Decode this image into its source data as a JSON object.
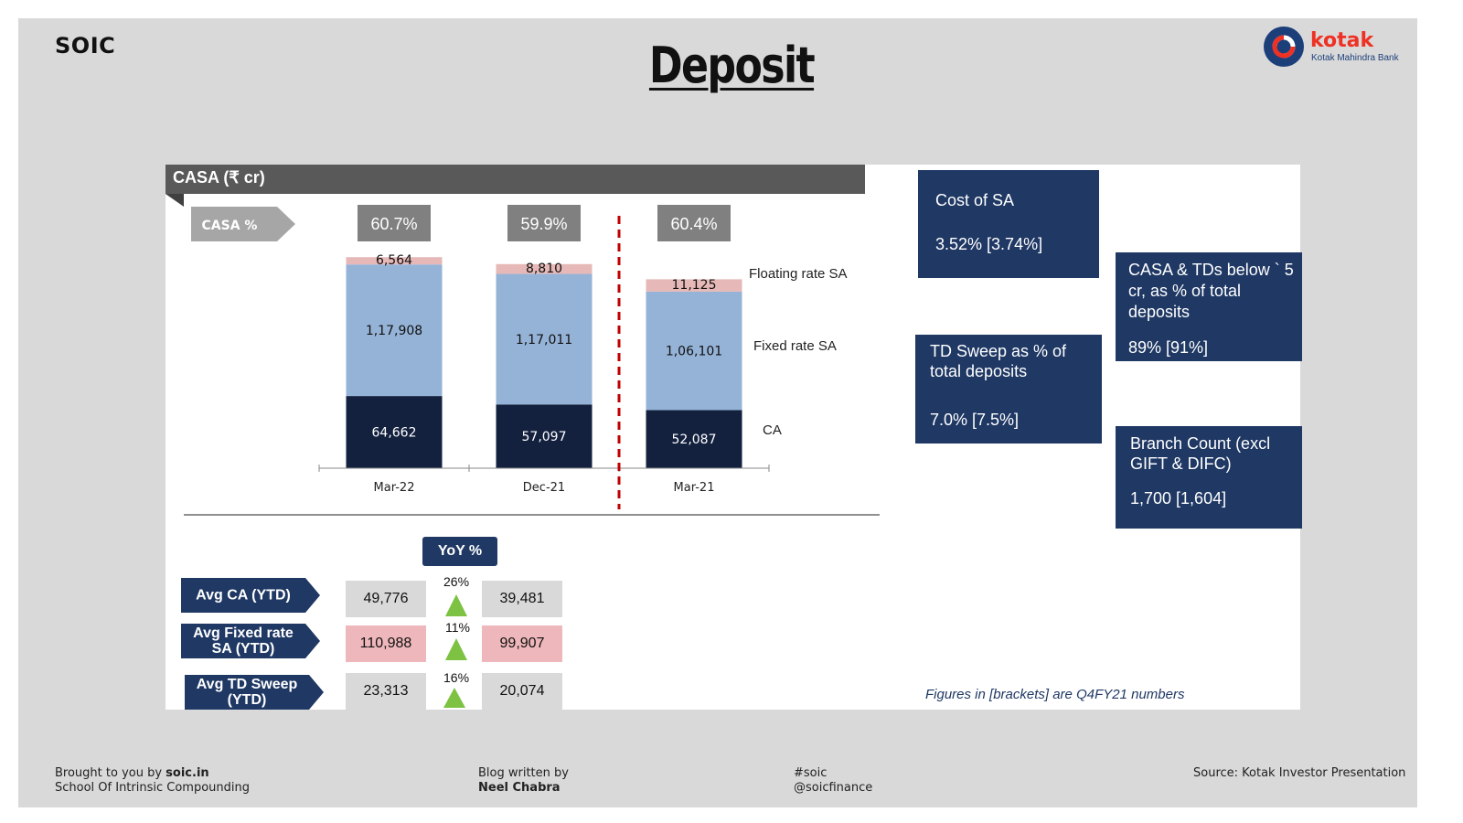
{
  "brand": "SOIC",
  "title": "Deposit",
  "logo": {
    "name": "kotak",
    "subtitle": "Kotak Mahindra Bank"
  },
  "casa_header": "CASA (₹ cr)",
  "casa_pct_label": "CASA %",
  "chart_data": {
    "type": "bar",
    "stacked": true,
    "categories": [
      "Mar-22",
      "Dec-21",
      "Mar-21"
    ],
    "casa_percent": [
      "60.7%",
      "59.9%",
      "60.4%"
    ],
    "series": [
      {
        "name": "CA",
        "values": [
          64662,
          57097,
          52087
        ],
        "labels": [
          "64,662",
          "57,097",
          "52,087"
        ],
        "color": "#13213f"
      },
      {
        "name": "Fixed rate SA",
        "values": [
          117908,
          117011,
          106101
        ],
        "labels": [
          "1,17,908",
          "1,17,011",
          "1,06,101"
        ],
        "color": "#95b3d7"
      },
      {
        "name": "Floating rate SA",
        "values": [
          6564,
          8810,
          11125
        ],
        "labels": [
          "6,564",
          "8,810",
          "11,125"
        ],
        "color": "#e6b9b8"
      }
    ],
    "legend_position": "right",
    "grid": false,
    "divider_color": "#c00000"
  },
  "tiles": {
    "cost_of_sa": {
      "label": "Cost of SA",
      "value": "3.52% [3.74%]"
    },
    "td_sweep": {
      "label_line1": "TD Sweep as % of",
      "label_line2": "total deposits",
      "value": "7.0% [7.5%]"
    },
    "casa_tds": {
      "label_line1": "CASA & TDs below ` 5",
      "label_line2": "cr, as % of total",
      "label_line3": "deposits",
      "value": "89% [91%]"
    },
    "branch": {
      "label_line1": "Branch Count (excl",
      "label_line2": "GIFT & DIFC)",
      "value": "1,700 [1,604]"
    }
  },
  "yoy": {
    "header": "YoY %",
    "rows": [
      {
        "label": "Avg CA (YTD)",
        "current": "49,776",
        "previous": "39,481",
        "pct": "26%"
      },
      {
        "label": "Avg Fixed rate SA (YTD)",
        "current": "110,988",
        "previous": "99,907",
        "pct": "11%"
      },
      {
        "label": "Avg TD Sweep (YTD)",
        "current": "23,313",
        "previous": "20,074",
        "pct": "16%"
      }
    ]
  },
  "note": "Figures in [brackets] are Q4FY21 numbers",
  "footer": {
    "brought_prefix": "Brought to you by ",
    "brought_site": "soic.in",
    "brought_line2": "School Of Intrinsic Compounding",
    "blog_line1": "Blog written by",
    "blog_author": "Neel Chabra",
    "tag1": "#soic",
    "tag2": "@soicfinance",
    "source": "Source: Kotak Investor Presentation"
  }
}
